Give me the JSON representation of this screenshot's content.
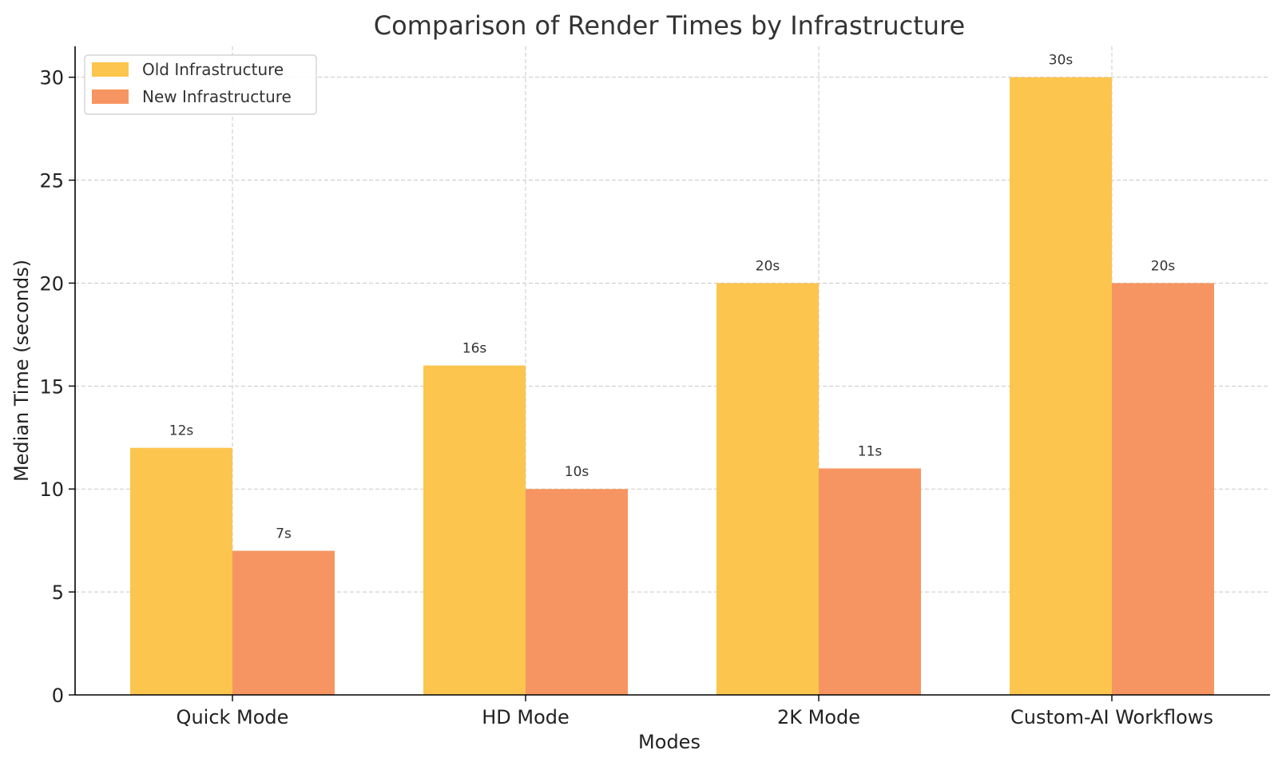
{
  "chart_data": {
    "type": "bar",
    "title": "Comparison of Render Times by Infrastructure",
    "xlabel": "Modes",
    "ylabel": "Median Time (seconds)",
    "categories": [
      "Quick Mode",
      "HD Mode",
      "2K Mode",
      "Custom-AI Workflows"
    ],
    "series": [
      {
        "name": "Old Infrastructure",
        "color": "#FCC54E",
        "values": [
          12,
          16,
          20,
          30
        ],
        "labels": [
          "12s",
          "16s",
          "20s",
          "30s"
        ]
      },
      {
        "name": "New Infrastructure",
        "color": "#F69561",
        "values": [
          7,
          10,
          11,
          20
        ],
        "labels": [
          "7s",
          "10s",
          "11s",
          "20s"
        ]
      }
    ],
    "ylim": [
      0,
      31.5
    ],
    "yticks": [
      0,
      5,
      10,
      15,
      20,
      25,
      30
    ],
    "grid": true,
    "legend_position": "top-left"
  }
}
